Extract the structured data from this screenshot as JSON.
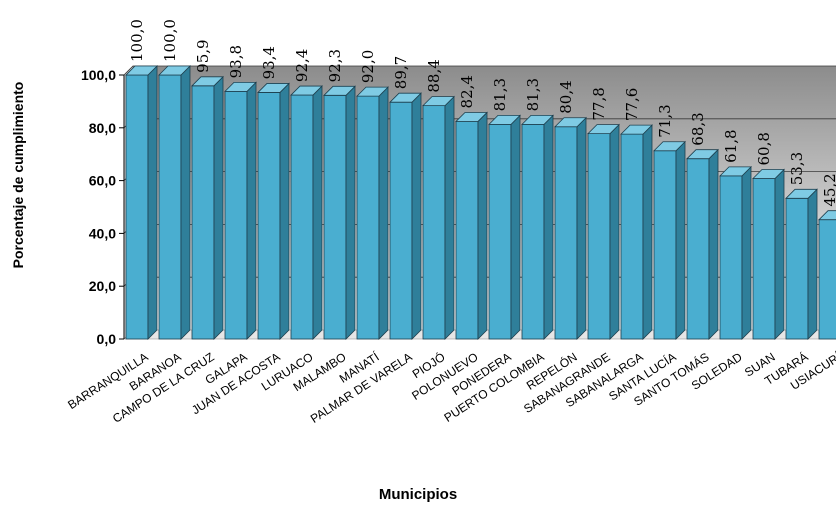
{
  "chart_data": {
    "type": "bar",
    "title": "",
    "xlabel": "Municipios",
    "ylabel": "Porcentaje de cumplimiento",
    "ylim": [
      0,
      100
    ],
    "yticks": [
      "0,0",
      "20,0",
      "40,0",
      "60,0",
      "80,0",
      "100,0"
    ],
    "legend": "none",
    "grid": true,
    "bar_color": "#4aaed0",
    "categories": [
      "BARRANQUILLA",
      "BARANOA",
      "CAMPO DE LA CRUZ",
      "GALAPA",
      "JUAN DE ACOSTA",
      "LURUACO",
      "MALAMBO",
      "MANATÍ",
      "PALMAR DE VARELA",
      "PIOJÓ",
      "POLONUEVO",
      "PONEDERA",
      "PUERTO COLOMBIA",
      "REPELÓN",
      "SABANAGRANDE",
      "SABANALARGA",
      "SANTA LUCÍA",
      "SANTO TOMÁS",
      "SOLEDAD",
      "SUAN",
      "TUBARÁ",
      "USIACURÍ"
    ],
    "values": [
      100.0,
      100.0,
      95.9,
      93.8,
      93.4,
      92.4,
      92.3,
      92.0,
      89.7,
      88.4,
      82.4,
      81.3,
      81.3,
      80.4,
      77.8,
      77.6,
      71.3,
      68.3,
      61.8,
      60.8,
      53.3,
      45.2
    ],
    "value_labels": [
      "100,0",
      "100,0",
      "95,9",
      "93,8",
      "93,4",
      "92,4",
      "92,3",
      "92,0",
      "89,7",
      "88,4",
      "82,4",
      "81,3",
      "81,3",
      "80,4",
      "77,8",
      "77,6",
      "71,3",
      "68,3",
      "61,8",
      "60,8",
      "53,3",
      "45,2"
    ]
  }
}
